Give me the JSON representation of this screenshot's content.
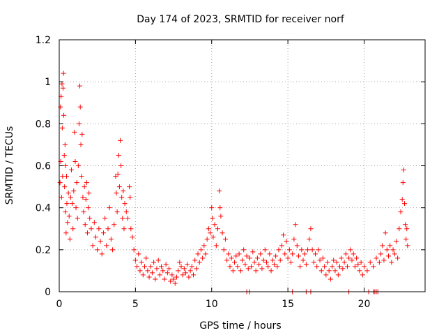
{
  "chart_data": {
    "type": "scatter",
    "title": "Day 174 of 2023, SRMTID for receiver norf",
    "xlabel": "GPS time / hours",
    "ylabel": "SRMTID / TECUs",
    "xlim": [
      0,
      24
    ],
    "ylim": [
      0,
      1.2
    ],
    "x_ticks": [
      0,
      5,
      10,
      15,
      20
    ],
    "x_tick_labels": [
      "0",
      "5",
      "10",
      "15",
      "20"
    ],
    "y_ticks": [
      0,
      0.2,
      0.4,
      0.6,
      0.8,
      1.0,
      1.2
    ],
    "y_tick_labels": [
      "0",
      "0.2",
      "0.4",
      "0.6",
      "0.8",
      "1",
      "1.2"
    ],
    "grid": true,
    "marker": "plus",
    "color": "#ff0000",
    "series": [
      {
        "name": "SRMTID",
        "points": [
          [
            0.05,
            0.52
          ],
          [
            0.08,
            0.88
          ],
          [
            0.1,
            0.62
          ],
          [
            0.12,
            0.93
          ],
          [
            0.15,
            0.45
          ],
          [
            0.18,
            0.99
          ],
          [
            0.2,
            0.78
          ],
          [
            0.22,
            0.55
          ],
          [
            0.25,
            0.97
          ],
          [
            0.28,
            1.04
          ],
          [
            0.3,
            0.84
          ],
          [
            0.33,
            0.65
          ],
          [
            0.35,
            0.5
          ],
          [
            0.38,
            0.7
          ],
          [
            0.4,
            0.38
          ],
          [
            0.42,
            0.6
          ],
          [
            0.45,
            0.28
          ],
          [
            0.48,
            0.55
          ],
          [
            0.5,
            0.42
          ],
          [
            0.55,
            0.33
          ],
          [
            0.6,
            0.47
          ],
          [
            0.65,
            0.36
          ],
          [
            0.7,
            0.25
          ],
          [
            0.75,
            0.45
          ],
          [
            0.8,
            0.58
          ],
          [
            0.85,
            0.42
          ],
          [
            0.9,
            0.3
          ],
          [
            0.95,
            0.48
          ],
          [
            1.0,
            0.76
          ],
          [
            1.05,
            0.62
          ],
          [
            1.1,
            0.4
          ],
          [
            1.15,
            0.52
          ],
          [
            1.2,
            0.35
          ],
          [
            1.25,
            0.6
          ],
          [
            1.3,
            0.8
          ],
          [
            1.35,
            0.98
          ],
          [
            1.38,
            0.88
          ],
          [
            1.42,
            0.7
          ],
          [
            1.46,
            0.55
          ],
          [
            1.5,
            0.75
          ],
          [
            1.55,
            0.45
          ],
          [
            1.6,
            0.38
          ],
          [
            1.65,
            0.5
          ],
          [
            1.7,
            0.32
          ],
          [
            1.75,
            0.44
          ],
          [
            1.8,
            0.52
          ],
          [
            1.85,
            0.28
          ],
          [
            1.9,
            0.4
          ],
          [
            1.95,
            0.47
          ],
          [
            2.0,
            0.35
          ],
          [
            2.1,
            0.3
          ],
          [
            2.2,
            0.22
          ],
          [
            2.3,
            0.33
          ],
          [
            2.4,
            0.26
          ],
          [
            2.5,
            0.2
          ],
          [
            2.6,
            0.3
          ],
          [
            2.7,
            0.24
          ],
          [
            2.8,
            0.18
          ],
          [
            2.9,
            0.28
          ],
          [
            3.0,
            0.35
          ],
          [
            3.1,
            0.22
          ],
          [
            3.2,
            0.3
          ],
          [
            3.3,
            0.4
          ],
          [
            3.4,
            0.25
          ],
          [
            3.5,
            0.2
          ],
          [
            3.6,
            0.32
          ],
          [
            3.7,
            0.55
          ],
          [
            3.75,
            0.47
          ],
          [
            3.8,
            0.38
          ],
          [
            3.85,
            0.56
          ],
          [
            3.9,
            0.65
          ],
          [
            3.95,
            0.5
          ],
          [
            4.0,
            0.72
          ],
          [
            4.05,
            0.6
          ],
          [
            4.1,
            0.45
          ],
          [
            4.15,
            0.35
          ],
          [
            4.2,
            0.48
          ],
          [
            4.25,
            0.3
          ],
          [
            4.3,
            0.42
          ],
          [
            4.4,
            0.38
          ],
          [
            4.5,
            0.35
          ],
          [
            4.6,
            0.5
          ],
          [
            4.65,
            0.45
          ],
          [
            4.7,
            0.3
          ],
          [
            4.8,
            0.26
          ],
          [
            4.9,
            0.2
          ],
          [
            5.0,
            0.15
          ],
          [
            5.1,
            0.12
          ],
          [
            5.2,
            0.18
          ],
          [
            5.3,
            0.1
          ],
          [
            5.4,
            0.14
          ],
          [
            5.5,
            0.08
          ],
          [
            5.6,
            0.12
          ],
          [
            5.7,
            0.16
          ],
          [
            5.8,
            0.1
          ],
          [
            5.9,
            0.07
          ],
          [
            6.0,
            0.12
          ],
          [
            6.1,
            0.09
          ],
          [
            6.2,
            0.14
          ],
          [
            6.3,
            0.06
          ],
          [
            6.4,
            0.11
          ],
          [
            6.5,
            0.15
          ],
          [
            6.6,
            0.08
          ],
          [
            6.7,
            0.12
          ],
          [
            6.8,
            0.1
          ],
          [
            6.9,
            0.06
          ],
          [
            7.0,
            0.13
          ],
          [
            7.1,
            0.09
          ],
          [
            7.2,
            0.11
          ],
          [
            7.3,
            0.05
          ],
          [
            7.4,
            0.08
          ],
          [
            7.5,
            0.06
          ],
          [
            7.6,
            0.04
          ],
          [
            7.7,
            0.07
          ],
          [
            7.8,
            0.1
          ],
          [
            7.9,
            0.14
          ],
          [
            8.0,
            0.12
          ],
          [
            8.1,
            0.08
          ],
          [
            8.2,
            0.11
          ],
          [
            8.3,
            0.09
          ],
          [
            8.4,
            0.13
          ],
          [
            8.5,
            0.07
          ],
          [
            8.6,
            0.1
          ],
          [
            8.7,
            0.12
          ],
          [
            8.8,
            0.08
          ],
          [
            8.9,
            0.15
          ],
          [
            9.0,
            0.11
          ],
          [
            9.1,
            0.18
          ],
          [
            9.2,
            0.14
          ],
          [
            9.3,
            0.2
          ],
          [
            9.4,
            0.16
          ],
          [
            9.5,
            0.22
          ],
          [
            9.6,
            0.18
          ],
          [
            9.7,
            0.25
          ],
          [
            9.8,
            0.3
          ],
          [
            9.9,
            0.28
          ],
          [
            10.0,
            0.4
          ],
          [
            10.05,
            0.35
          ],
          [
            10.1,
            0.26
          ],
          [
            10.2,
            0.32
          ],
          [
            10.3,
            0.22
          ],
          [
            10.4,
            0.3
          ],
          [
            10.5,
            0.48
          ],
          [
            10.55,
            0.4
          ],
          [
            10.6,
            0.36
          ],
          [
            10.7,
            0.28
          ],
          [
            10.8,
            0.2
          ],
          [
            10.9,
            0.25
          ],
          [
            11.0,
            0.15
          ],
          [
            11.1,
            0.18
          ],
          [
            11.2,
            0.12
          ],
          [
            11.3,
            0.16
          ],
          [
            11.4,
            0.1
          ],
          [
            11.5,
            0.14
          ],
          [
            11.6,
            0.17
          ],
          [
            11.7,
            0.12
          ],
          [
            11.8,
            0.18
          ],
          [
            11.9,
            0.1
          ],
          [
            12.0,
            0.15
          ],
          [
            12.1,
            0.2
          ],
          [
            12.2,
            0.13
          ],
          [
            12.3,
            0.17
          ],
          [
            12.4,
            0.11
          ],
          [
            12.5,
            0.16
          ],
          [
            12.6,
            0.12
          ],
          [
            12.7,
            0.19
          ],
          [
            12.8,
            0.14
          ],
          [
            12.9,
            0.1
          ],
          [
            13.0,
            0.16
          ],
          [
            13.1,
            0.13
          ],
          [
            13.2,
            0.18
          ],
          [
            13.3,
            0.11
          ],
          [
            13.4,
            0.15
          ],
          [
            13.5,
            0.2
          ],
          [
            13.6,
            0.14
          ],
          [
            13.7,
            0.12
          ],
          [
            13.8,
            0.18
          ],
          [
            13.9,
            0.1
          ],
          [
            14.0,
            0.15
          ],
          [
            14.1,
            0.13
          ],
          [
            14.2,
            0.17
          ],
          [
            14.3,
            0.12
          ],
          [
            14.4,
            0.2
          ],
          [
            14.5,
            0.15
          ],
          [
            14.6,
            0.22
          ],
          [
            14.7,
            0.27
          ],
          [
            14.8,
            0.18
          ],
          [
            14.9,
            0.24
          ],
          [
            15.0,
            0.16
          ],
          [
            15.1,
            0.2
          ],
          [
            15.2,
            0.14
          ],
          [
            15.3,
            0.18
          ],
          [
            15.4,
            0.25
          ],
          [
            15.5,
            0.32
          ],
          [
            15.6,
            0.22
          ],
          [
            15.7,
            0.17
          ],
          [
            15.8,
            0.12
          ],
          [
            15.9,
            0.2
          ],
          [
            16.0,
            0.15
          ],
          [
            16.1,
            0.18
          ],
          [
            16.2,
            0.13
          ],
          [
            16.3,
            0.2
          ],
          [
            16.4,
            0.25
          ],
          [
            16.5,
            0.3
          ],
          [
            16.6,
            0.2
          ],
          [
            16.7,
            0.14
          ],
          [
            16.8,
            0.18
          ],
          [
            16.9,
            0.12
          ],
          [
            17.0,
            0.2
          ],
          [
            17.1,
            0.15
          ],
          [
            17.2,
            0.1
          ],
          [
            17.3,
            0.16
          ],
          [
            17.4,
            0.12
          ],
          [
            17.5,
            0.08
          ],
          [
            17.6,
            0.14
          ],
          [
            17.7,
            0.1
          ],
          [
            17.8,
            0.06
          ],
          [
            17.9,
            0.12
          ],
          [
            18.0,
            0.15
          ],
          [
            18.1,
            0.1
          ],
          [
            18.2,
            0.14
          ],
          [
            18.3,
            0.08
          ],
          [
            18.4,
            0.12
          ],
          [
            18.5,
            0.16
          ],
          [
            18.6,
            0.11
          ],
          [
            18.7,
            0.14
          ],
          [
            18.8,
            0.18
          ],
          [
            18.9,
            0.12
          ],
          [
            19.0,
            0.16
          ],
          [
            19.1,
            0.2
          ],
          [
            19.2,
            0.15
          ],
          [
            19.3,
            0.18
          ],
          [
            19.4,
            0.12
          ],
          [
            19.5,
            0.16
          ],
          [
            19.6,
            0.13
          ],
          [
            19.7,
            0.1
          ],
          [
            19.8,
            0.14
          ],
          [
            19.9,
            0.08
          ],
          [
            20.0,
            0.12
          ],
          [
            20.2,
            0.1
          ],
          [
            20.4,
            0.14
          ],
          [
            20.6,
            0.12
          ],
          [
            20.8,
            0.16
          ],
          [
            21.0,
            0.14
          ],
          [
            21.1,
            0.18
          ],
          [
            21.2,
            0.22
          ],
          [
            21.3,
            0.15
          ],
          [
            21.4,
            0.28
          ],
          [
            21.5,
            0.2
          ],
          [
            21.6,
            0.17
          ],
          [
            21.7,
            0.22
          ],
          [
            21.8,
            0.14
          ],
          [
            21.9,
            0.2
          ],
          [
            22.0,
            0.18
          ],
          [
            22.1,
            0.24
          ],
          [
            22.2,
            0.16
          ],
          [
            22.3,
            0.3
          ],
          [
            22.4,
            0.38
          ],
          [
            22.5,
            0.44
          ],
          [
            22.55,
            0.52
          ],
          [
            22.6,
            0.58
          ],
          [
            22.65,
            0.42
          ],
          [
            22.7,
            0.32
          ],
          [
            22.75,
            0.25
          ],
          [
            22.8,
            0.3
          ],
          [
            22.85,
            0.22
          ],
          [
            12.3,
            0.0
          ],
          [
            12.5,
            0.0
          ],
          [
            15.3,
            0.0
          ],
          [
            16.2,
            0.0
          ],
          [
            16.5,
            0.0
          ],
          [
            19.0,
            0.0
          ],
          [
            20.3,
            0.0
          ],
          [
            20.6,
            0.0
          ],
          [
            20.7,
            0.0
          ],
          [
            20.8,
            0.0
          ],
          [
            20.9,
            0.0
          ]
        ]
      }
    ]
  }
}
